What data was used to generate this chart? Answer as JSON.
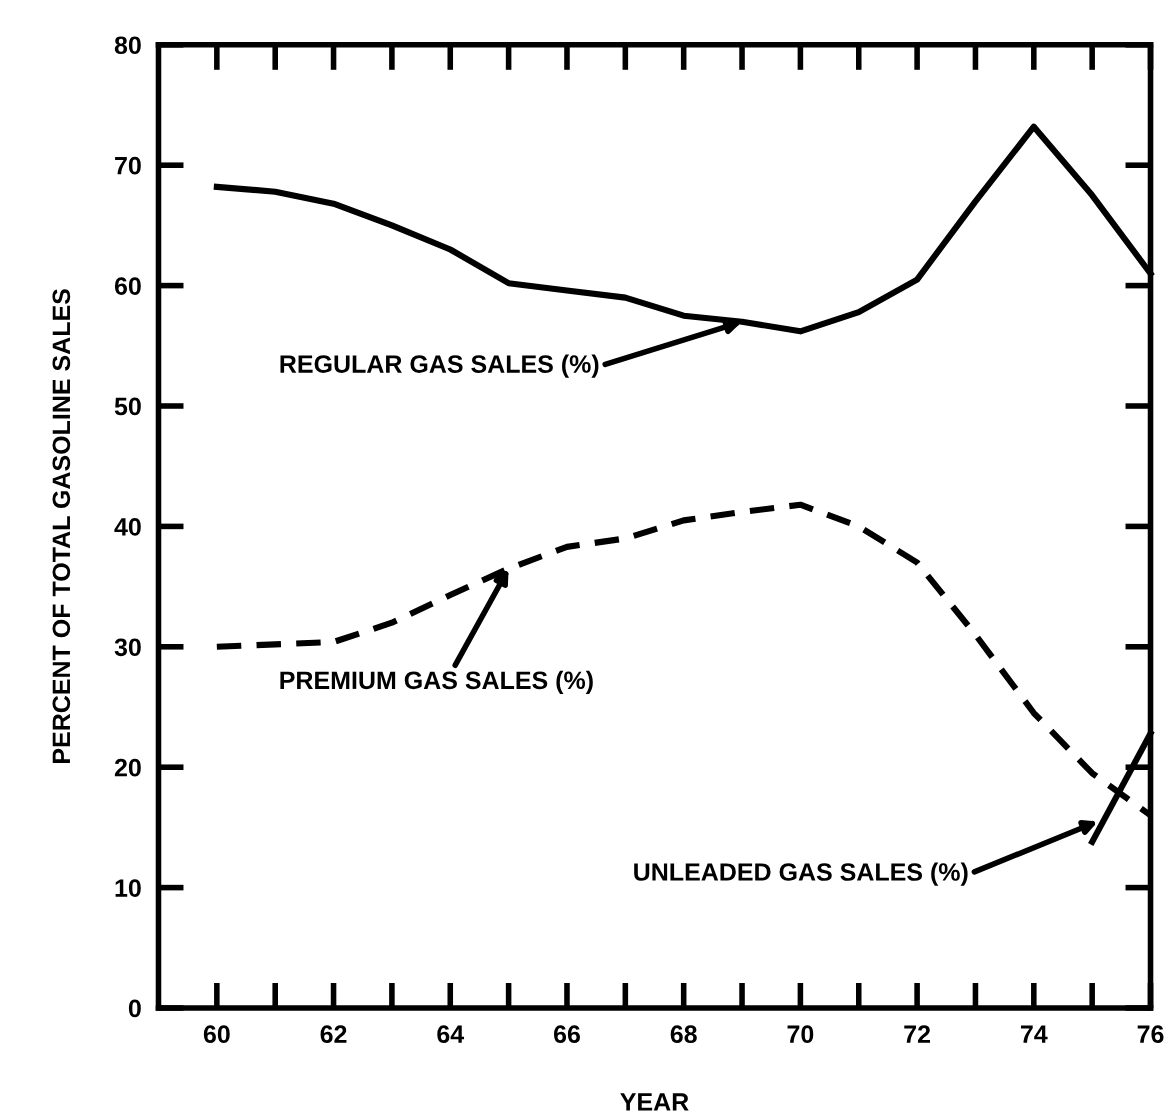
{
  "chart_data": {
    "type": "line",
    "xlabel": "YEAR",
    "ylabel": "PERCENT OF TOTAL GASOLINE SALES",
    "xlim": [
      59,
      76
    ],
    "ylim": [
      0,
      80
    ],
    "xticks": [
      60,
      {
        "value": 61,
        "label": null
      },
      62,
      {
        "value": 63,
        "label": null
      },
      64,
      {
        "value": 65,
        "label": null
      },
      66,
      {
        "value": 67,
        "label": null
      },
      68,
      {
        "value": 69,
        "label": null
      },
      70,
      {
        "value": 71,
        "label": null
      },
      72,
      {
        "value": 73,
        "label": null
      },
      74,
      {
        "value": 75,
        "label": null
      },
      76
    ],
    "yticks": [
      0,
      10,
      20,
      30,
      40,
      50,
      60,
      70,
      80
    ],
    "grid": false,
    "legend": false,
    "marker": "none",
    "series": [
      {
        "color": "#000000",
        "line_style": "solid",
        "x": [
          60,
          61,
          62,
          63,
          64,
          65,
          66,
          67,
          68,
          69,
          70,
          71,
          72,
          73,
          74,
          75,
          76
        ],
        "values": [
          68.2,
          67.8,
          66.8,
          65,
          63,
          60.2,
          59.6,
          59,
          57.5,
          57,
          56.2,
          57.8,
          60.5,
          67,
          73.2,
          67.5,
          61
        ]
      },
      {
        "color": "#000000",
        "line_style": "dashed",
        "x": [
          60,
          61,
          62,
          63,
          64,
          65,
          66,
          67,
          68,
          69,
          70,
          71,
          72,
          73,
          74,
          75,
          76
        ],
        "values": [
          30,
          30.2,
          30.4,
          32,
          34.3,
          36.5,
          38.3,
          39,
          40.5,
          41.2,
          41.8,
          40,
          37,
          31,
          24.5,
          19.5,
          16
        ]
      },
      {
        "color": "#000000",
        "line_style": "solid",
        "x": [
          75,
          76
        ],
        "values": [
          13.8,
          22.8
        ]
      }
    ],
    "annotations": [
      {
        "text": "REGULAR GAS SALES (%)",
        "x": 69,
        "y": 57
      },
      {
        "text": "PREMIUM GAS SALES (%)",
        "x": 65,
        "y": 36.5
      },
      {
        "text": "UNLEADED GAS SALES (%)",
        "x": 75.1,
        "y": 15.5
      }
    ]
  }
}
